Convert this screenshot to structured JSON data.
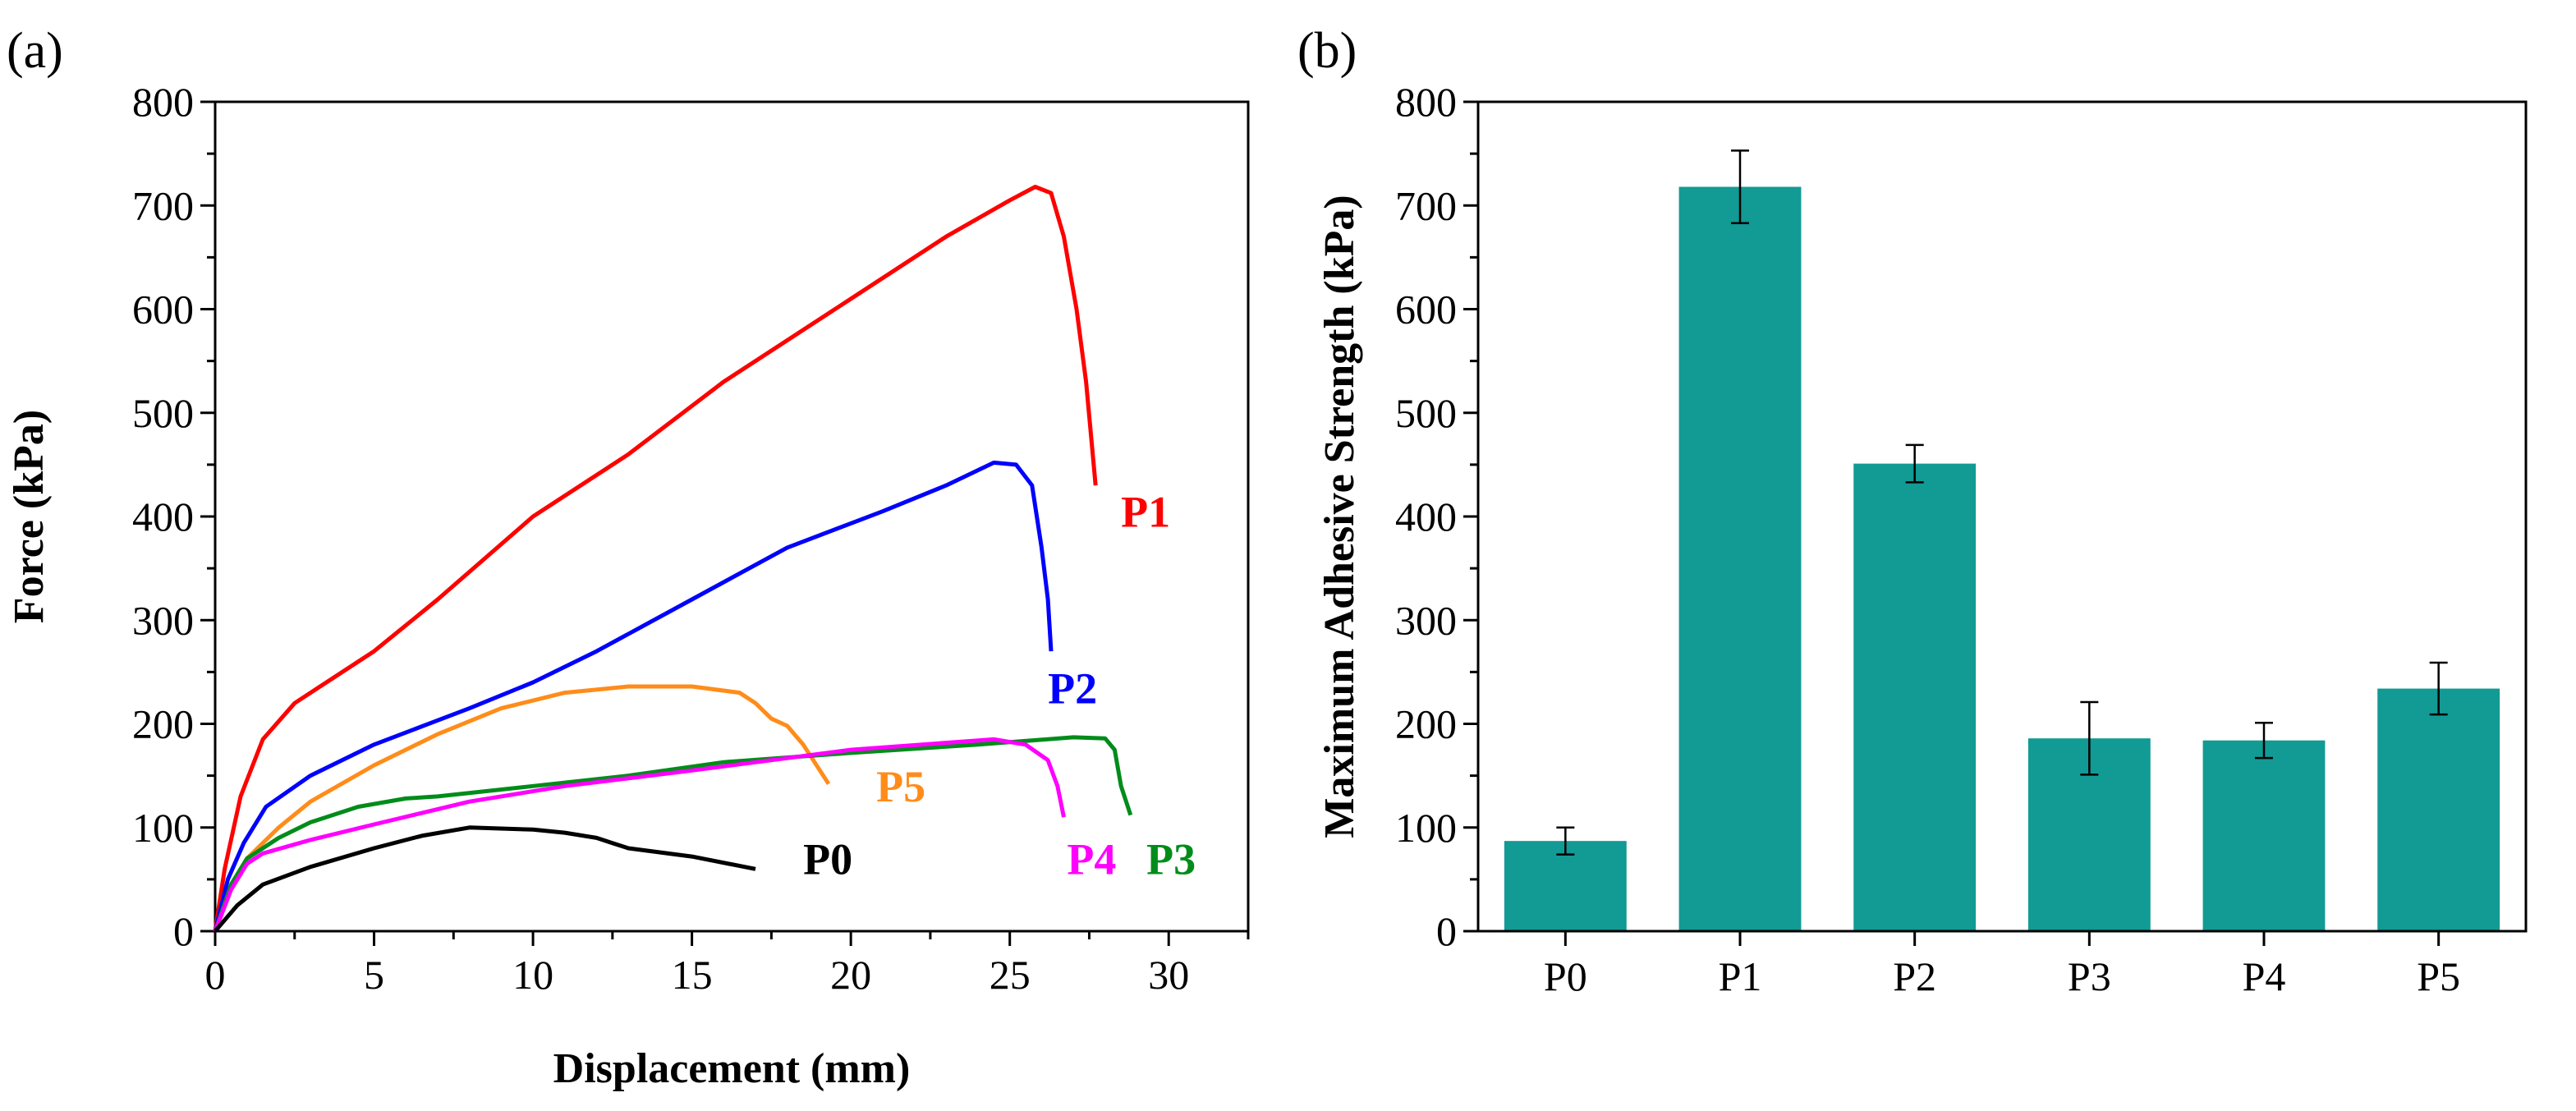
{
  "chart_data": [
    {
      "panel_label": "(a)",
      "type": "line",
      "xlabel": "Displacement (mm)",
      "ylabel": "Force (kPa)",
      "xlim": [
        0,
        32.5
      ],
      "ylim": [
        0,
        800
      ],
      "xticks": [
        "0",
        "5",
        "10",
        "15",
        "20",
        "25",
        "30"
      ],
      "yticks": [
        "0",
        "100",
        "200",
        "300",
        "400",
        "500",
        "600",
        "700",
        "800"
      ],
      "grid": false,
      "series": [
        {
          "name": "P1",
          "color": "#ff0000",
          "label_at": [
            28.5,
            390
          ],
          "points": [
            [
              0,
              0
            ],
            [
              0.3,
              60
            ],
            [
              0.8,
              130
            ],
            [
              1.5,
              185
            ],
            [
              2.5,
              220
            ],
            [
              3.5,
              240
            ],
            [
              5,
              270
            ],
            [
              7,
              320
            ],
            [
              10,
              400
            ],
            [
              13,
              460
            ],
            [
              16,
              530
            ],
            [
              20,
              610
            ],
            [
              23,
              670
            ],
            [
              25,
              705
            ],
            [
              25.8,
              718
            ],
            [
              26.3,
              712
            ],
            [
              26.7,
              670
            ],
            [
              27.1,
              600
            ],
            [
              27.4,
              530
            ],
            [
              27.7,
              430
            ]
          ]
        },
        {
          "name": "P2",
          "color": "#0000ff",
          "label_at": [
            26.2,
            220
          ],
          "points": [
            [
              0,
              0
            ],
            [
              0.4,
              50
            ],
            [
              0.9,
              85
            ],
            [
              1.6,
              120
            ],
            [
              3,
              150
            ],
            [
              5,
              180
            ],
            [
              8,
              215
            ],
            [
              10,
              240
            ],
            [
              12,
              270
            ],
            [
              15,
              320
            ],
            [
              18,
              370
            ],
            [
              21,
              405
            ],
            [
              23,
              430
            ],
            [
              24.5,
              452
            ],
            [
              25.2,
              450
            ],
            [
              25.7,
              430
            ],
            [
              26,
              370
            ],
            [
              26.2,
              320
            ],
            [
              26.3,
              270
            ]
          ]
        },
        {
          "name": "P5",
          "color": "#ff8c1a",
          "label_at": [
            20.8,
            125
          ],
          "points": [
            [
              0,
              0
            ],
            [
              0.5,
              40
            ],
            [
              1,
              70
            ],
            [
              2,
              100
            ],
            [
              3,
              125
            ],
            [
              5,
              160
            ],
            [
              7,
              190
            ],
            [
              9,
              215
            ],
            [
              11,
              230
            ],
            [
              13,
              236
            ],
            [
              15,
              236
            ],
            [
              16.5,
              230
            ],
            [
              17,
              220
            ],
            [
              17.5,
              205
            ],
            [
              18,
              198
            ],
            [
              18.5,
              180
            ],
            [
              19.3,
              142
            ]
          ]
        },
        {
          "name": "P3",
          "color": "#008c1a",
          "label_at": [
            29.3,
            55
          ],
          "points": [
            [
              0,
              0
            ],
            [
              0.5,
              45
            ],
            [
              1,
              70
            ],
            [
              2,
              90
            ],
            [
              3,
              105
            ],
            [
              4.5,
              120
            ],
            [
              6,
              128
            ],
            [
              7,
              130
            ],
            [
              10,
              140
            ],
            [
              13,
              150
            ],
            [
              16,
              163
            ],
            [
              20,
              172
            ],
            [
              24,
              180
            ],
            [
              27,
              187
            ],
            [
              28,
              186
            ],
            [
              28.3,
              175
            ],
            [
              28.5,
              140
            ],
            [
              28.8,
              112
            ]
          ]
        },
        {
          "name": "P4",
          "color": "#ff00ff",
          "label_at": [
            26.8,
            55
          ],
          "points": [
            [
              0,
              0
            ],
            [
              0.5,
              40
            ],
            [
              1,
              65
            ],
            [
              1.5,
              75
            ],
            [
              3,
              88
            ],
            [
              5,
              103
            ],
            [
              8,
              125
            ],
            [
              11,
              140
            ],
            [
              15,
              155
            ],
            [
              20,
              175
            ],
            [
              24.5,
              185
            ],
            [
              25.5,
              180
            ],
            [
              26.2,
              165
            ],
            [
              26.5,
              140
            ],
            [
              26.7,
              110
            ]
          ]
        },
        {
          "name": "P0",
          "color": "#000000",
          "label_at": [
            18.5,
            55
          ],
          "points": [
            [
              0,
              0
            ],
            [
              0.7,
              25
            ],
            [
              1.5,
              45
            ],
            [
              3,
              62
            ],
            [
              5,
              80
            ],
            [
              6.5,
              92
            ],
            [
              8,
              100
            ],
            [
              10,
              98
            ],
            [
              11,
              95
            ],
            [
              12,
              90
            ],
            [
              12.5,
              85
            ],
            [
              13,
              80
            ],
            [
              15,
              72
            ],
            [
              17,
              60
            ]
          ]
        }
      ]
    },
    {
      "panel_label": "(b)",
      "type": "bar",
      "xlabel": "",
      "ylabel": "Maximum Adhesive Strength (kPa)",
      "ylim": [
        0,
        800
      ],
      "yticks": [
        "0",
        "100",
        "200",
        "300",
        "400",
        "500",
        "600",
        "700",
        "800"
      ],
      "categories": [
        "P0",
        "P1",
        "P2",
        "P3",
        "P4",
        "P5"
      ],
      "values": [
        87,
        718,
        451,
        186,
        184,
        234
      ],
      "errors": [
        13,
        35,
        18,
        35,
        17,
        25
      ],
      "bar_color": "#129a94",
      "grid": false
    }
  ]
}
